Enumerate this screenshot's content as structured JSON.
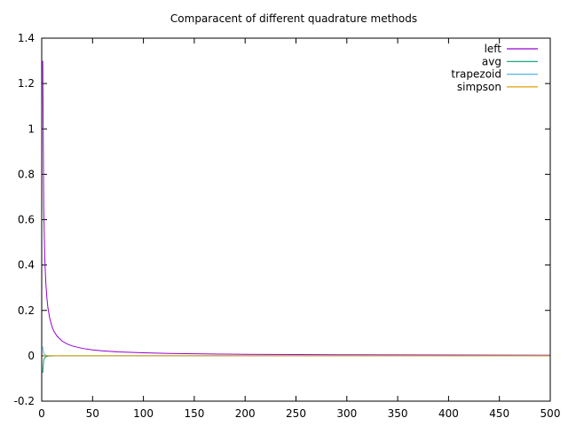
{
  "chart_data": {
    "type": "line",
    "title": "Comparacent of different quadrature methods",
    "xlabel": "",
    "ylabel": "",
    "xlim": [
      0,
      500
    ],
    "ylim": [
      -0.2,
      1.4
    ],
    "xticks": [
      "0",
      "50",
      "100",
      "150",
      "200",
      "250",
      "300",
      "350",
      "400",
      "450",
      "500"
    ],
    "yticks": [
      "-0.2",
      "0",
      "0.2",
      "0.4",
      "0.6",
      "0.8",
      "1",
      "1.2",
      "1.4"
    ],
    "grid": false,
    "legend_position": "top-right",
    "series": [
      {
        "name": "left",
        "color": "#9400d3",
        "x": [
          1,
          2,
          3,
          4,
          5,
          6,
          8,
          10,
          12,
          15,
          20,
          25,
          30,
          40,
          50,
          60,
          75,
          100,
          125,
          150,
          175,
          200,
          250,
          300,
          350,
          400,
          450,
          500
        ],
        "y": [
          1.3,
          0.65,
          0.43,
          0.325,
          0.26,
          0.215,
          0.163,
          0.13,
          0.108,
          0.087,
          0.065,
          0.052,
          0.0433,
          0.0325,
          0.026,
          0.0217,
          0.0173,
          0.013,
          0.0104,
          0.0087,
          0.0074,
          0.0065,
          0.0052,
          0.0043,
          0.0037,
          0.0033,
          0.0029,
          0.0026
        ]
      },
      {
        "name": "avg",
        "color": "#009e73",
        "x": [
          1,
          2,
          3,
          4,
          5,
          6,
          8,
          10,
          12,
          15,
          20,
          30,
          50,
          100,
          200,
          300,
          400,
          500
        ],
        "y": [
          -0.075,
          -0.019,
          -0.0083,
          -0.0047,
          -0.003,
          -0.0021,
          -0.0012,
          -0.00075,
          -0.0005,
          -0.0003,
          -0.0002,
          -0.0001,
          0,
          0,
          0,
          0,
          0,
          0
        ]
      },
      {
        "name": "trapezoid",
        "color": "#56b4e9",
        "x": [
          1,
          2,
          3,
          4,
          5,
          6,
          8,
          10,
          12,
          15,
          20,
          30,
          50,
          100,
          200,
          300,
          400,
          500
        ],
        "y": [
          0.04,
          0.01,
          0.0044,
          0.0025,
          0.0016,
          0.0011,
          0.0006,
          0.0004,
          0.0003,
          0.0002,
          0.0001,
          0,
          0,
          0,
          0,
          0,
          0,
          0
        ]
      },
      {
        "name": "simpson",
        "color": "#e69f00",
        "x": [
          1,
          2,
          3,
          5,
          10,
          50,
          100,
          200,
          300,
          400,
          500
        ],
        "y": [
          0.002,
          0.0005,
          0.0002,
          0,
          0,
          0,
          0,
          0,
          0,
          0,
          0
        ]
      }
    ]
  }
}
